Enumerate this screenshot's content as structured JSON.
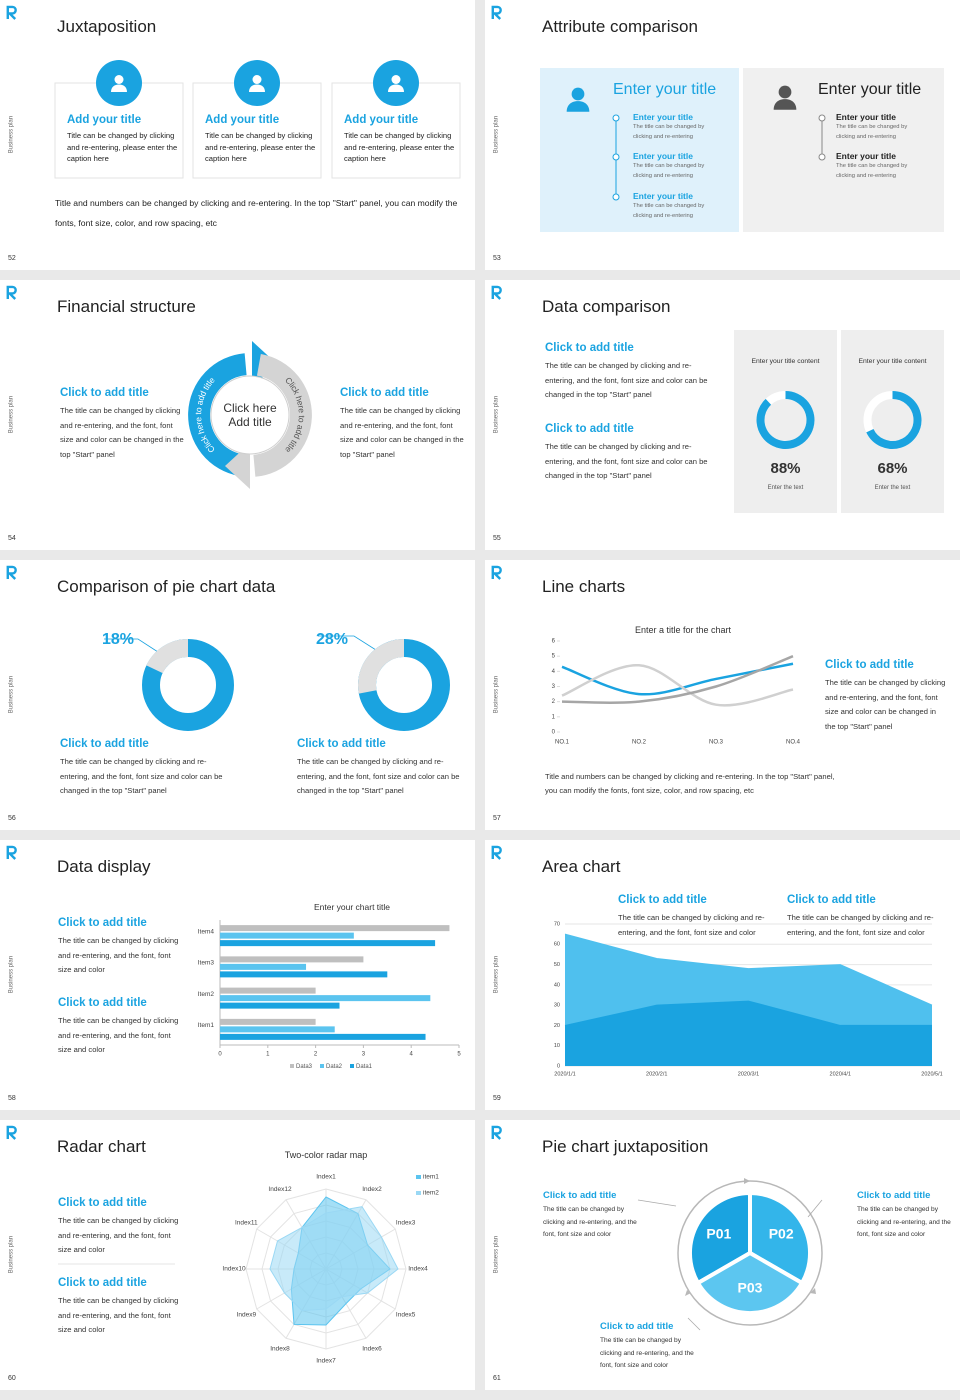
{
  "side_label": "Business plan",
  "slides": [
    {
      "number": 52,
      "title": "Juxtaposition",
      "cards": [
        {
          "title": "Add your title",
          "text": "Title can be changed by clicking and re-entering, please enter the caption here"
        },
        {
          "title": "Add your title",
          "text": "Title can be changed by clicking and re-entering, please enter the caption here"
        },
        {
          "title": "Add your title",
          "text": "Title can be changed by clicking and re-entering, please enter the caption here"
        }
      ],
      "note": "Title and numbers can be changed by clicking and re-entering. In the top \"Start\" panel, you can modify the fonts, font size, color, and row spacing, etc"
    },
    {
      "number": 53,
      "title": "Attribute comparison",
      "panels": [
        {
          "title": "Enter your title",
          "items": [
            {
              "title": "Enter your title",
              "text": "The title can be changed by clicking and re-entering"
            },
            {
              "title": "Enter your title",
              "text": "The title can be changed by clicking and re-entering"
            },
            {
              "title": "Enter your title",
              "text": "The title can be changed by clicking and re-entering"
            }
          ]
        },
        {
          "title": "Enter your title",
          "items": [
            {
              "title": "Enter your title",
              "text": "The title can be changed by clicking and re-entering"
            },
            {
              "title": "Enter your title",
              "text": "The title can be changed by clicking and re-entering"
            }
          ]
        }
      ]
    },
    {
      "number": 54,
      "title": "Financial structure",
      "items": [
        {
          "title": "Click to add title",
          "text": "The title can be changed by clicking and re-entering, and the font, font size and color can be changed in the top \"Start\" panel"
        },
        {
          "title": "Click to add title",
          "text": "The title can be changed by clicking and re-entering, and the font, font size and color can be changed in the top \"Start\" panel"
        }
      ],
      "center": "Click here Add title",
      "arc_labels": [
        "Click here to add title",
        "Click here to add title"
      ]
    },
    {
      "number": 55,
      "title": "Data comparison",
      "items": [
        {
          "title": "Click to add title",
          "text": "The title can be changed by clicking and re-entering, and the font, font size and color can be changed in the top \"Start\" panel"
        },
        {
          "title": "Click to add title",
          "text": "The title can be changed by clicking and re-entering, and the font, font size and color can be changed in the top \"Start\" panel"
        }
      ],
      "gauges": [
        {
          "heading": "Enter your title content",
          "value": 88,
          "value_label": "88%",
          "caption": "Enter the text"
        },
        {
          "heading": "Enter your title content",
          "value": 68,
          "value_label": "68%",
          "caption": "Enter the text"
        }
      ]
    },
    {
      "number": 56,
      "title": "Comparison of pie chart data",
      "pies": [
        {
          "value": 18,
          "value_label": "18%",
          "title": "Click to add title",
          "text": "The title can be changed by clicking and re-entering, and the font, font size and color can be changed in the top \"Start\" panel"
        },
        {
          "value": 28,
          "value_label": "28%",
          "title": "Click to add title",
          "text": "The title can be changed by clicking and re-entering, and the font, font size and color can be changed in the top \"Start\" panel"
        }
      ]
    },
    {
      "number": 57,
      "title": "Line charts",
      "chart_data": {
        "type": "line",
        "title": "Enter a title for the chart",
        "categories": [
          "NO.1",
          "NO.2",
          "NO.3",
          "NO.4"
        ],
        "ylim": [
          0,
          6
        ],
        "yticks": [
          0,
          1,
          2,
          3,
          4,
          5,
          6
        ],
        "series": [
          {
            "color": "#1aa3e0",
            "values": [
              4.3,
              2.5,
              3.5,
              4.5
            ]
          },
          {
            "color": "#d0d0d0",
            "values": [
              2.4,
              4.4,
              1.8,
              2.8
            ]
          },
          {
            "color": "#a6a6a6",
            "values": [
              2,
              2,
              3,
              5
            ]
          }
        ]
      },
      "item": {
        "title": "Click to add title",
        "text": "The title can be changed by clicking and re-entering, and the font, font size and color can be changed in the top \"Start\" panel"
      },
      "note": "Title and numbers can be changed by clicking and re-entering. In the top \"Start\" panel, you can modify the fonts, font size, color, and row spacing, etc"
    },
    {
      "number": 58,
      "title": "Data display",
      "chart_data": {
        "type": "hbar",
        "title": "Enter your chart title",
        "categories": [
          "Item1",
          "Item2",
          "Item3",
          "Item4"
        ],
        "xlim": [
          0,
          5
        ],
        "xticks": [
          0,
          1,
          2,
          3,
          4,
          5
        ],
        "series": [
          {
            "name": "Data1",
            "color": "#1aa3e0",
            "values": [
              4.3,
              2.5,
              3.5,
              4.5
            ]
          },
          {
            "name": "Data2",
            "color": "#5bc4ef",
            "values": [
              2.4,
              4.4,
              1.8,
              2.8
            ]
          },
          {
            "name": "Data3",
            "color": "#bfbfbf",
            "values": [
              2,
              2,
              3,
              4.8
            ]
          }
        ]
      },
      "items": [
        {
          "title": "Click to add title",
          "text": "The title can be changed by clicking and re-entering, and the font, font size and color"
        },
        {
          "title": "Click to add title",
          "text": "The title can be changed by clicking and re-entering, and the font, font size and color"
        }
      ]
    },
    {
      "number": 59,
      "title": "Area chart",
      "chart_data": {
        "type": "area",
        "categories": [
          "2020/1/1",
          "2020/2/1",
          "2020/3/1",
          "2020/4/1",
          "2020/5/1"
        ],
        "ylim": [
          0,
          70
        ],
        "yticks": [
          0,
          10,
          20,
          30,
          40,
          50,
          60,
          70
        ],
        "grid": true,
        "series": [
          {
            "color": "#4fc0ee",
            "values": [
              65,
              53,
              48,
              50,
              30
            ]
          },
          {
            "color": "#1aa3e0",
            "values": [
              20,
              30,
              32,
              20,
              20
            ]
          }
        ]
      },
      "items": [
        {
          "title": "Click to add title",
          "text": "The title can be changed by clicking and re-entering, and the font, font size and color"
        },
        {
          "title": "Click to add title",
          "text": "The title can be changed by clicking and re-entering, and the font, font size and color"
        }
      ]
    },
    {
      "number": 60,
      "title": "Radar chart",
      "chart_data": {
        "type": "radar",
        "title": "Two-color radar map",
        "categories": [
          "Index1",
          "Index2",
          "Index3",
          "Index4",
          "Index5",
          "Index6",
          "Index7",
          "Index8",
          "Index9",
          "Index10",
          "Index11",
          "Index12"
        ],
        "rlim": [
          0,
          5
        ],
        "rticks": [
          1,
          2,
          3,
          4,
          5
        ],
        "series": [
          {
            "name": "item1",
            "color": "#5bc4ef",
            "values": [
              4.5,
              4.0,
              3.0,
              4.0,
              2.5,
              2.5,
              3.5,
              4.0,
              2.5,
              2.0,
              2.0,
              3.0
            ]
          },
          {
            "name": "item2",
            "color": "#9ad8f4",
            "values": [
              3.5,
              4.5,
              4.0,
              4.5,
              3.0,
              2.0,
              2.5,
              3.0,
              3.0,
              3.5,
              3.5,
              3.0
            ]
          }
        ]
      },
      "items": [
        {
          "title": "Click to add title",
          "text": "The title can be changed by clicking and re-entering, and the font, font size and color"
        },
        {
          "title": "Click to add title",
          "text": "The title can be changed by clicking and re-entering, and the font, font size and color"
        }
      ]
    },
    {
      "number": 61,
      "title": "Pie chart juxtaposition",
      "segments": [
        "P01",
        "P02",
        "P03"
      ],
      "items": [
        {
          "title": "Click to add title",
          "text": "The title can be changed by clicking and re-entering, and the font, font size and color"
        },
        {
          "title": "Click to add title",
          "text": "The title can be changed by clicking and re-entering, and the font, font size and color"
        },
        {
          "title": "Click to add title",
          "text": "The title can be changed by clicking and re-entering, and the font, font size and color"
        }
      ]
    }
  ]
}
